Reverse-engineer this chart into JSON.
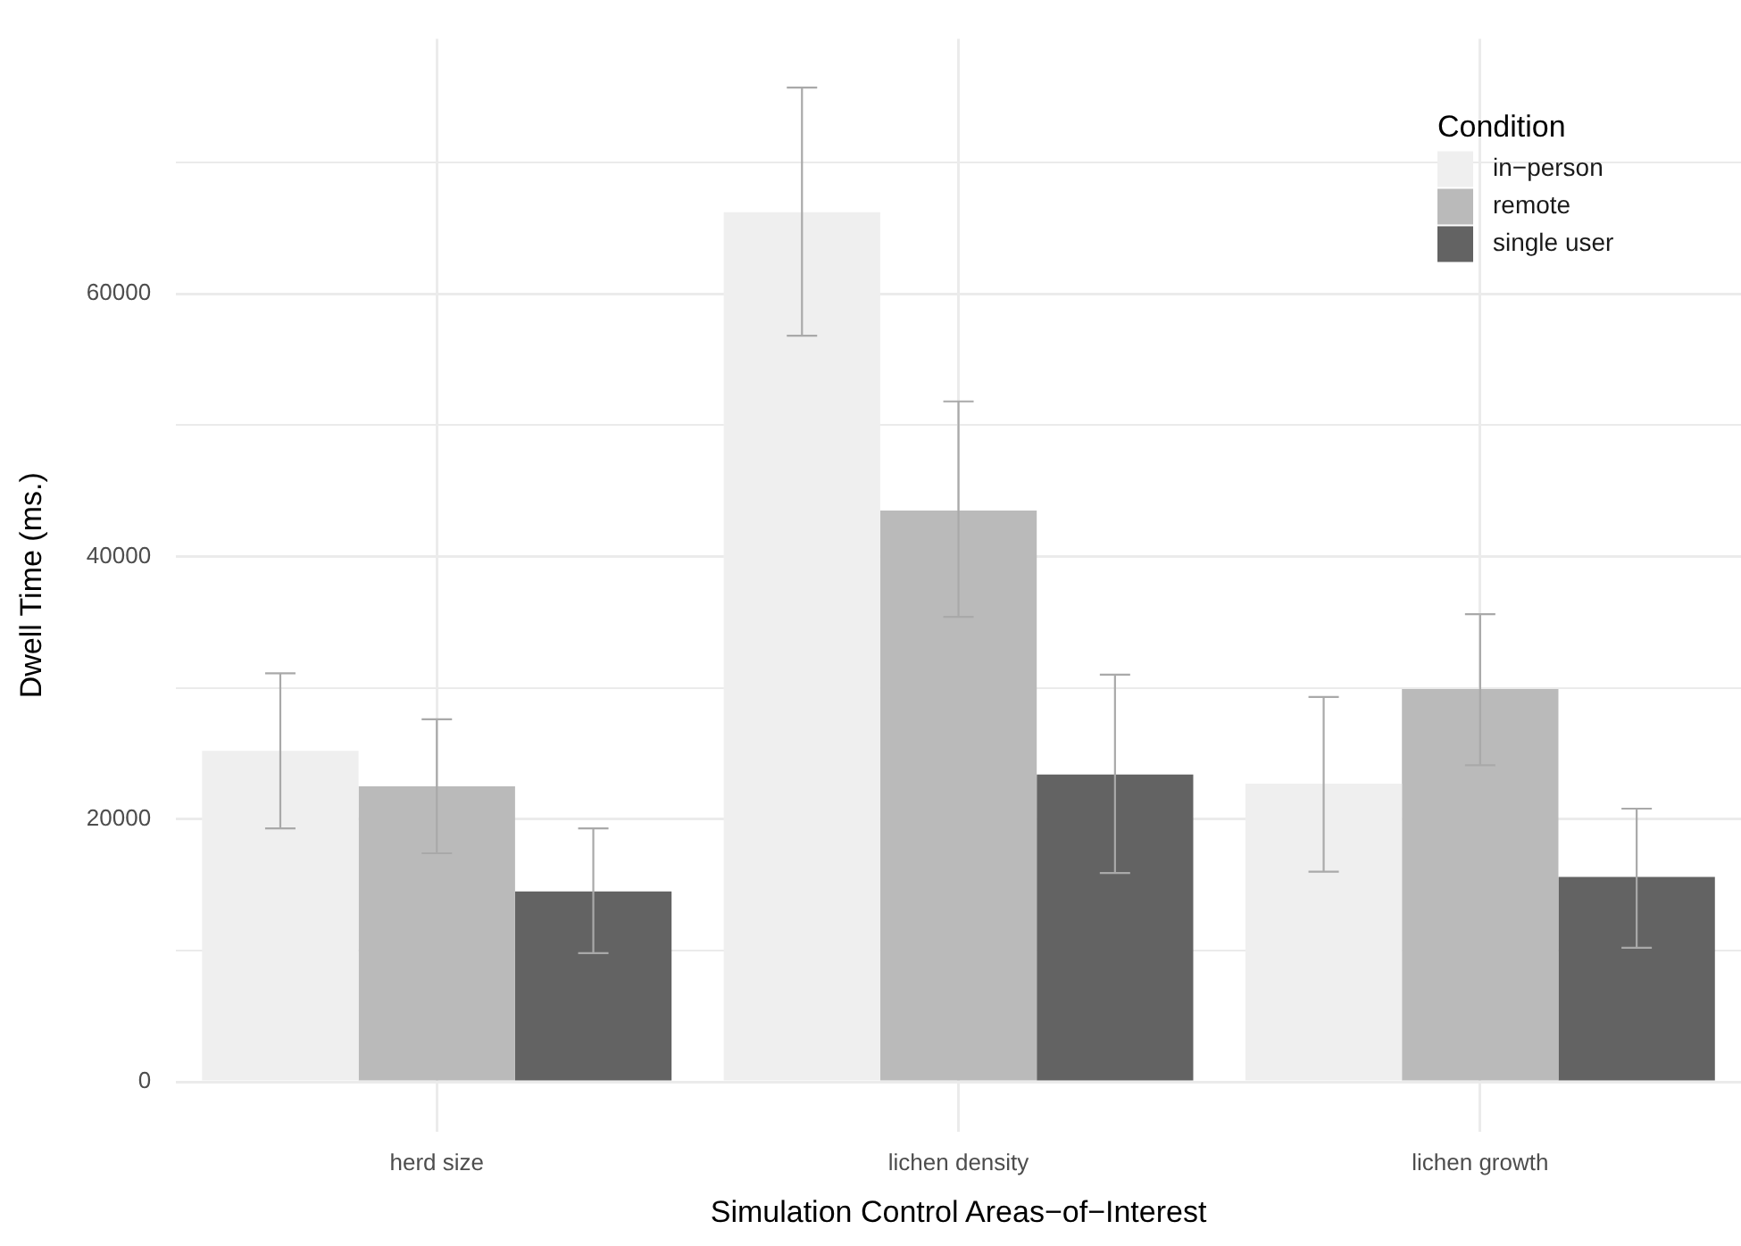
{
  "chart_data": {
    "type": "bar",
    "xlabel": "Simulation Control Areas−of−Interest",
    "ylabel": "Dwell Time (ms.)",
    "legend_title": "Condition",
    "categories": [
      "herd size",
      "lichen density",
      "lichen growth"
    ],
    "series": [
      {
        "name": "in−person",
        "color": "#efefef",
        "values": [
          25200,
          66200,
          22700
        ],
        "errors": [
          [
            19300,
            31100
          ],
          [
            56800,
            75700
          ],
          [
            16000,
            29300
          ]
        ]
      },
      {
        "name": "remote",
        "color": "#bababa",
        "values": [
          22500,
          43500,
          29900
        ],
        "errors": [
          [
            17400,
            27600
          ],
          [
            35400,
            51800
          ],
          [
            24100,
            35600
          ]
        ]
      },
      {
        "name": "single user",
        "color": "#636363",
        "values": [
          14500,
          23400,
          15600
        ],
        "errors": [
          [
            9800,
            19300
          ],
          [
            15900,
            31000
          ],
          [
            10200,
            20800
          ]
        ]
      }
    ],
    "ylim": [
      -3800,
      79400
    ],
    "yticks": [
      0,
      {
        "value": 10000,
        "label": null
      },
      20000,
      {
        "value": 30000,
        "label": null
      },
      40000,
      {
        "value": 50000,
        "label": null
      },
      60000,
      {
        "value": 70000,
        "label": null
      }
    ],
    "grid": true,
    "legend": "top right"
  }
}
